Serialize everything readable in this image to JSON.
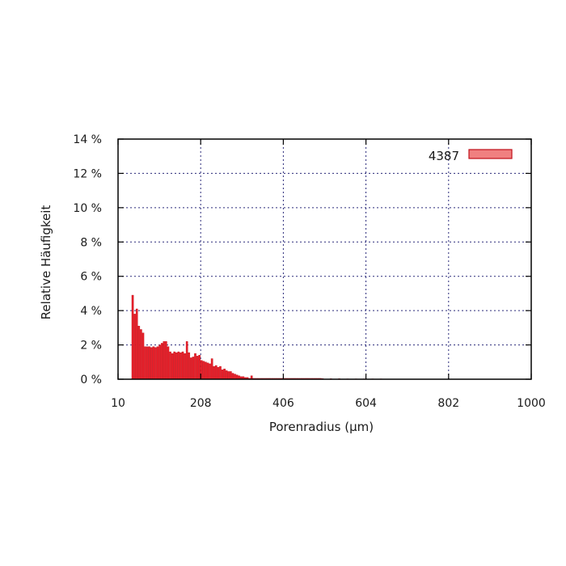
{
  "chart_data": {
    "type": "bar",
    "title": "",
    "xlabel": "Porenradius (µm)",
    "ylabel": "Relative Häufigkeit",
    "xlim": [
      10,
      1000
    ],
    "ylim": [
      0,
      14
    ],
    "x_ticks": [
      "10",
      "208",
      "406",
      "604",
      "802",
      "1000"
    ],
    "y_ticks": [
      "0 %",
      "2 %",
      "4 %",
      "6 %",
      "8 %",
      "10 %",
      "12 %",
      "14 %"
    ],
    "grid": true,
    "legend_position": "top-right",
    "bar_color": "#e8202a",
    "bar_edge_color": "#c0101a",
    "legend_fill_color": "#f08080",
    "series": [
      {
        "name": "4387",
        "x": [
          45,
          50,
          55,
          60,
          65,
          70,
          75,
          80,
          85,
          90,
          95,
          100,
          105,
          110,
          115,
          120,
          125,
          130,
          135,
          140,
          145,
          150,
          155,
          160,
          165,
          170,
          175,
          180,
          185,
          190,
          195,
          200,
          205,
          210,
          215,
          220,
          225,
          230,
          235,
          240,
          245,
          250,
          255,
          260,
          265,
          270,
          275,
          280,
          285,
          290,
          295,
          300,
          305,
          310,
          315,
          320,
          325,
          330,
          335,
          340,
          345,
          350,
          355,
          360,
          365,
          370,
          375,
          380,
          385,
          390,
          395,
          400,
          405,
          410,
          415,
          420,
          425,
          430,
          435,
          440,
          445,
          450,
          455,
          460,
          465,
          470,
          475,
          480,
          485,
          490,
          495,
          500,
          520,
          540,
          560,
          580,
          600,
          620,
          640
        ],
        "values": [
          4.9,
          3.8,
          4.1,
          3.1,
          2.9,
          2.7,
          1.9,
          1.9,
          1.9,
          1.85,
          1.9,
          1.85,
          1.9,
          2.0,
          2.1,
          2.2,
          2.2,
          1.9,
          1.6,
          1.5,
          1.6,
          1.55,
          1.6,
          1.55,
          1.6,
          1.5,
          2.2,
          1.55,
          1.25,
          1.3,
          1.5,
          1.35,
          1.4,
          1.1,
          1.05,
          1.0,
          0.95,
          0.9,
          1.2,
          0.75,
          0.8,
          0.7,
          0.75,
          0.55,
          0.6,
          0.5,
          0.45,
          0.45,
          0.35,
          0.3,
          0.25,
          0.2,
          0.15,
          0.15,
          0.1,
          0.1,
          0.05,
          0.2,
          0.05,
          0.05,
          0.05,
          0.05,
          0.05,
          0.05,
          0.05,
          0.05,
          0.05,
          0.05,
          0.05,
          0.05,
          0.05,
          0.05,
          0.05,
          0.05,
          0.05,
          0.05,
          0.05,
          0.05,
          0.05,
          0.05,
          0.05,
          0.05,
          0.05,
          0.05,
          0.05,
          0.05,
          0.05,
          0.05,
          0.05,
          0.05,
          0.05,
          0.04,
          0.03,
          0.03,
          0.02,
          0.02,
          0.02,
          0.02,
          0.02
        ]
      }
    ]
  }
}
